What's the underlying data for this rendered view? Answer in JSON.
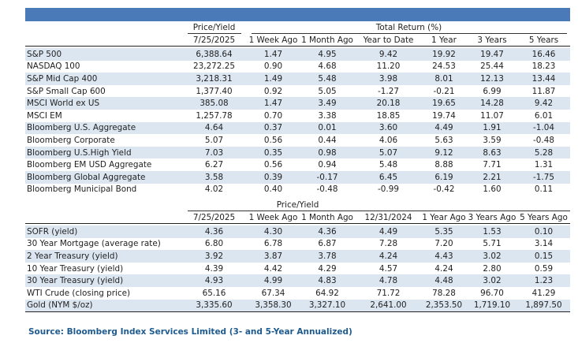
{
  "header": {
    "price_yield": "Price/Yield",
    "total_return": "Total Return (%)",
    "cols": [
      "7/25/2025",
      "1 Week Ago",
      "1 Month Ago",
      "Year to Date",
      "1 Year",
      "3 Years",
      "5 Years"
    ]
  },
  "equities": [
    {
      "label": "S&P 500",
      "v": [
        "6,388.64",
        "1.47",
        "4.95",
        "9.42",
        "19.92",
        "19.47",
        "16.46"
      ]
    },
    {
      "label": "NASDAQ 100",
      "v": [
        "23,272.25",
        "0.90",
        "4.68",
        "11.20",
        "24.53",
        "25.44",
        "18.23"
      ]
    },
    {
      "label": "S&P Mid Cap 400",
      "v": [
        "3,218.31",
        "1.49",
        "5.48",
        "3.98",
        "8.01",
        "12.13",
        "13.44"
      ]
    },
    {
      "label": "S&P Small Cap 600",
      "v": [
        "1,377.40",
        "0.92",
        "5.05",
        "-1.27",
        "-0.21",
        "6.99",
        "11.87"
      ]
    },
    {
      "label": "MSCI World ex US",
      "v": [
        "385.08",
        "1.47",
        "3.49",
        "20.18",
        "19.65",
        "14.28",
        "9.42"
      ]
    },
    {
      "label": "MSCI EM",
      "v": [
        "1,257.78",
        "0.70",
        "3.38",
        "18.85",
        "19.74",
        "11.07",
        "6.01"
      ]
    },
    {
      "label": "Bloomberg U.S. Aggregate",
      "v": [
        "4.64",
        "0.37",
        "0.01",
        "3.60",
        "4.49",
        "1.91",
        "-1.04"
      ]
    },
    {
      "label": "Bloomberg Corporate",
      "v": [
        "5.07",
        "0.56",
        "0.44",
        "4.06",
        "5.63",
        "3.59",
        "-0.48"
      ]
    },
    {
      "label": "Bloomberg U.S.High Yield",
      "v": [
        "7.03",
        "0.35",
        "0.98",
        "5.07",
        "9.12",
        "8.63",
        "5.28"
      ]
    },
    {
      "label": "Bloomberg EM USD Aggregate",
      "v": [
        "6.27",
        "0.56",
        "0.94",
        "5.48",
        "8.88",
        "7.71",
        "1.31"
      ]
    },
    {
      "label": "Bloomberg Global Aggregate",
      "v": [
        "3.58",
        "0.39",
        "-0.17",
        "6.45",
        "6.19",
        "2.21",
        "-1.75"
      ]
    },
    {
      "label": "Bloomberg Municipal Bond",
      "v": [
        "4.02",
        "0.40",
        "-0.48",
        "-0.99",
        "-0.42",
        "1.60",
        "0.11"
      ]
    }
  ],
  "rates_header": {
    "price_yield": "Price/Yield",
    "cols": [
      "7/25/2025",
      "1 Week Ago",
      "1 Month Ago",
      "12/31/2024",
      "1 Year Ago",
      "3 Years Ago",
      "5 Years Ago"
    ]
  },
  "rates": [
    {
      "label": "SOFR (yield)",
      "v": [
        "4.36",
        "4.30",
        "4.36",
        "4.49",
        "5.35",
        "1.53",
        "0.10"
      ]
    },
    {
      "label": "30 Year Mortgage (average rate)",
      "v": [
        "6.80",
        "6.78",
        "6.87",
        "7.28",
        "7.20",
        "5.71",
        "3.14"
      ]
    },
    {
      "label": "2 Year Treasury (yield)",
      "v": [
        "3.92",
        "3.87",
        "3.78",
        "4.24",
        "4.43",
        "3.02",
        "0.15"
      ]
    },
    {
      "label": "10 Year Treasury (yield)",
      "v": [
        "4.39",
        "4.42",
        "4.29",
        "4.57",
        "4.24",
        "2.80",
        "0.59"
      ]
    },
    {
      "label": "30 Year Treasury (yield)",
      "v": [
        "4.93",
        "4.99",
        "4.83",
        "4.78",
        "4.48",
        "3.02",
        "1.23"
      ]
    },
    {
      "label": "WTI Crude (closing price)",
      "v": [
        "65.16",
        "67.34",
        "64.92",
        "71.72",
        "78.28",
        "96.70",
        "41.29"
      ]
    },
    {
      "label": "Gold (NYM $/oz)",
      "v": [
        "3,335.60",
        "3,358.30",
        "3,327.10",
        "2,641.00",
        "2,353.50",
        "1,719.10",
        "1,897.50"
      ]
    }
  ],
  "source": "Source: Bloomberg Index Services Limited (3- and 5-Year Annualized)",
  "colors": {
    "header_bar": "#4a7ab8",
    "stripe": "#dce6f1",
    "source_text": "#1f5b8e"
  }
}
